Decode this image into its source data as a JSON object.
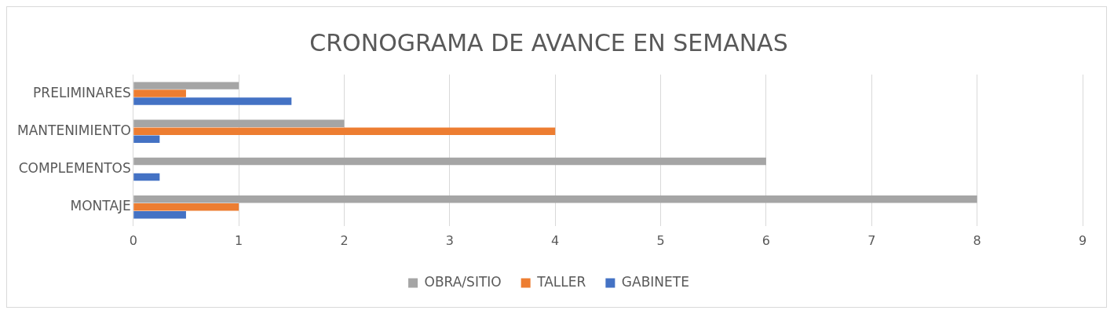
{
  "chart_data": {
    "type": "bar",
    "orientation": "horizontal",
    "title": "CRONOGRAMA DE AVANCE EN SEMANAS",
    "categories": [
      "PRELIMINARES",
      "MANTENIMIENTO",
      "COMPLEMENTOS",
      "MONTAJE"
    ],
    "series": [
      {
        "name": "OBRA/SITIO",
        "color": "#a5a5a5",
        "values": [
          1,
          2,
          6,
          8
        ]
      },
      {
        "name": "TALLER",
        "color": "#ed7d31",
        "values": [
          0.5,
          4,
          0,
          1
        ]
      },
      {
        "name": "GABINETE",
        "color": "#4472c4",
        "values": [
          1.5,
          0.25,
          0.25,
          0.5
        ]
      }
    ],
    "xlim": [
      0,
      9
    ],
    "xticks": [
      0,
      1,
      2,
      3,
      4,
      5,
      6,
      7,
      8,
      9
    ],
    "grid": "x",
    "legend": "bottom"
  }
}
